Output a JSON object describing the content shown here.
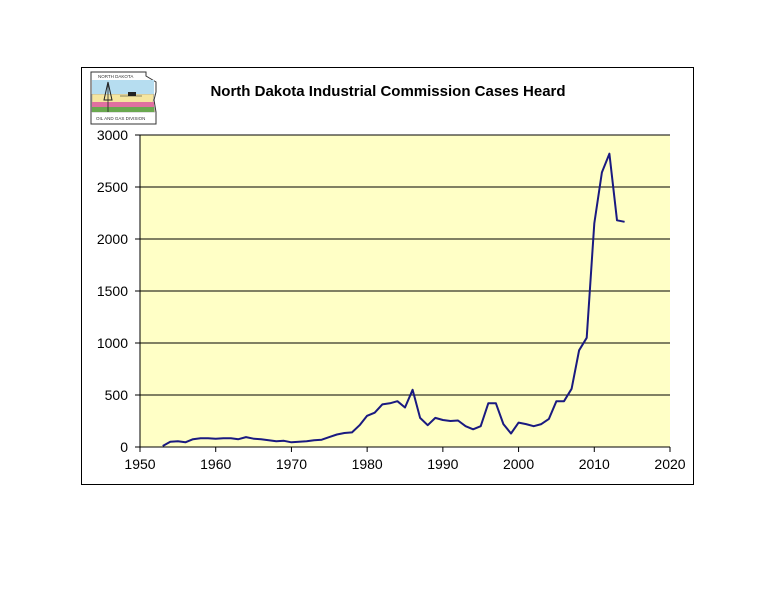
{
  "logo": {
    "top_text": "NORTH DAKOTA",
    "bottom_text": "OIL AND GAS DIVISION"
  },
  "colors": {
    "plot_background": "#ffffc6",
    "line": "#1a1a80",
    "gridline": "#000000",
    "frame": "#000000"
  },
  "chart_data": {
    "type": "line",
    "title": "North Dakota Industrial Commission Cases Heard",
    "xlabel": "",
    "ylabel": "",
    "xlim": [
      1950,
      2020
    ],
    "ylim": [
      0,
      3000
    ],
    "xticks": [
      1950,
      1960,
      1970,
      1980,
      1990,
      2000,
      2010,
      2020
    ],
    "yticks": [
      0,
      500,
      1000,
      1500,
      2000,
      2500,
      3000
    ],
    "grid": "horizontal",
    "legend": "none",
    "series": [
      {
        "x": [
          1953,
          1954,
          1955,
          1956,
          1957,
          1958,
          1959,
          1960,
          1961,
          1962,
          1963,
          1964,
          1965,
          1966,
          1967,
          1968,
          1969,
          1970,
          1971,
          1972,
          1973,
          1974,
          1975,
          1976,
          1977,
          1978,
          1979,
          1980,
          1981,
          1982,
          1983,
          1984,
          1985,
          1986,
          1987,
          1988,
          1989,
          1990,
          1991,
          1992,
          1993,
          1994,
          1995,
          1996,
          1997,
          1998,
          1999,
          2000,
          2001,
          2002,
          2003,
          2004,
          2005,
          2006,
          2007,
          2008,
          2009,
          2010,
          2011,
          2012,
          2013,
          2014
        ],
        "y": [
          10,
          50,
          55,
          45,
          75,
          85,
          85,
          80,
          85,
          85,
          75,
          95,
          80,
          75,
          65,
          55,
          60,
          45,
          50,
          55,
          65,
          70,
          95,
          120,
          135,
          140,
          210,
          300,
          330,
          410,
          420,
          440,
          380,
          550,
          280,
          210,
          280,
          260,
          250,
          255,
          200,
          170,
          200,
          420,
          420,
          220,
          130,
          235,
          220,
          200,
          220,
          270,
          440,
          440,
          560,
          930,
          1050,
          2150,
          2640,
          2820,
          2180,
          2165
        ]
      }
    ]
  }
}
